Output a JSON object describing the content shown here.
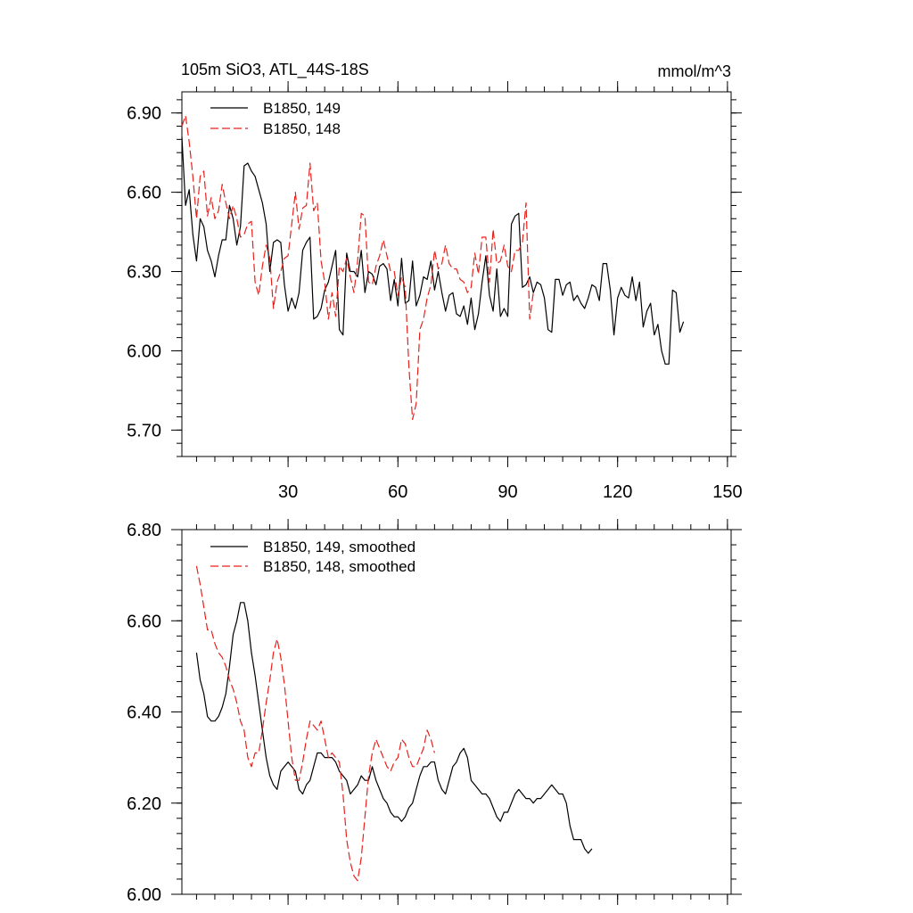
{
  "figure": {
    "title_left": "105m SiO3, ATL_44S-18S",
    "title_right": "mmol/m^3"
  },
  "colors": {
    "series_149": "#000000",
    "series_148": "#e8201b",
    "axis": "#000000"
  },
  "chart_data": [
    {
      "type": "line",
      "title": "105m SiO3, ATL_44S-18S",
      "units": "mmol/m^3",
      "xlim": [
        1,
        151
      ],
      "ylim": [
        5.6,
        6.98
      ],
      "xticks": [
        30,
        60,
        90,
        120,
        150
      ],
      "xtick_labels": [
        "30",
        "60",
        "90",
        "120",
        "150"
      ],
      "yticks": [
        5.7,
        6.0,
        6.3,
        6.6,
        6.9
      ],
      "ytick_labels": [
        "5.70",
        "6.00",
        "6.30",
        "6.60",
        "6.90"
      ],
      "legend_position": "top-left",
      "series": [
        {
          "name": "B1850, 149",
          "style": "solid",
          "x_start": 1,
          "values": [
            6.81,
            6.55,
            6.61,
            6.44,
            6.34,
            6.5,
            6.47,
            6.38,
            6.34,
            6.28,
            6.36,
            6.42,
            6.42,
            6.55,
            6.5,
            6.4,
            6.47,
            6.7,
            6.71,
            6.68,
            6.66,
            6.61,
            6.56,
            6.48,
            6.3,
            6.41,
            6.42,
            6.41,
            6.25,
            6.15,
            6.2,
            6.16,
            6.22,
            6.38,
            6.41,
            6.43,
            6.12,
            6.13,
            6.16,
            6.23,
            6.26,
            6.32,
            6.38,
            6.08,
            6.06,
            6.37,
            6.3,
            6.3,
            6.28,
            6.38,
            6.22,
            6.3,
            6.29,
            6.25,
            6.32,
            6.33,
            6.31,
            6.19,
            6.27,
            6.17,
            6.35,
            6.18,
            6.19,
            6.34,
            6.17,
            6.21,
            6.28,
            6.27,
            6.34,
            6.23,
            6.3,
            6.22,
            6.15,
            6.21,
            6.22,
            6.14,
            6.13,
            6.17,
            6.1,
            6.2,
            6.08,
            6.14,
            6.26,
            6.36,
            6.21,
            6.15,
            6.31,
            6.13,
            6.16,
            6.13,
            6.48,
            6.51,
            6.52,
            6.24,
            6.25,
            6.28,
            6.22,
            6.26,
            6.25,
            6.2,
            6.08,
            6.07,
            6.27,
            6.27,
            6.21,
            6.25,
            6.26,
            6.19,
            6.21,
            6.18,
            6.16,
            6.2,
            6.25,
            6.24,
            6.19,
            6.33,
            6.33,
            6.23,
            6.06,
            6.2,
            6.24,
            6.21,
            6.2,
            6.28,
            6.19,
            6.26,
            6.09,
            6.15,
            6.18,
            6.06,
            6.1,
            6.0,
            5.95,
            5.95,
            6.23,
            6.22,
            6.07,
            6.11
          ]
        },
        {
          "name": "B1850, 148",
          "style": "dashed",
          "x_start": 1,
          "values": [
            6.85,
            6.89,
            6.79,
            6.66,
            6.5,
            6.66,
            6.68,
            6.51,
            6.58,
            6.5,
            6.53,
            6.63,
            6.56,
            6.5,
            6.55,
            6.5,
            6.43,
            6.44,
            6.48,
            6.49,
            6.26,
            6.21,
            6.32,
            6.4,
            6.35,
            6.16,
            6.26,
            6.3,
            6.35,
            6.36,
            6.48,
            6.6,
            6.46,
            6.54,
            6.55,
            6.71,
            6.53,
            6.56,
            6.34,
            6.26,
            6.12,
            6.22,
            6.13,
            6.32,
            6.3,
            6.35,
            6.28,
            6.22,
            6.34,
            6.52,
            6.51,
            6.26,
            6.25,
            6.32,
            6.36,
            6.42,
            6.36,
            6.3,
            6.3,
            6.21,
            6.28,
            6.24,
            5.94,
            5.74,
            5.8,
            6.08,
            6.12,
            6.2,
            6.25,
            6.38,
            6.31,
            6.33,
            6.4,
            6.33,
            6.31,
            6.31,
            6.27,
            6.26,
            6.22,
            6.24,
            6.37,
            6.29,
            6.43,
            6.43,
            6.26,
            6.46,
            6.33,
            6.34,
            6.4,
            6.32,
            6.3,
            6.38,
            6.38,
            6.41,
            6.56,
            6.12,
            6.22
          ]
        }
      ]
    },
    {
      "type": "line",
      "title": "",
      "xlim": [
        1,
        151
      ],
      "ylim": [
        6.0,
        6.8
      ],
      "xticks": [
        30,
        60,
        90,
        120,
        150
      ],
      "yticks": [
        6.0,
        6.2,
        6.4,
        6.6,
        6.8
      ],
      "ytick_labels": [
        "6.00",
        "6.20",
        "6.40",
        "6.60",
        "6.80"
      ],
      "legend_position": "top-left",
      "series": [
        {
          "name": "B1850, 149, smoothed",
          "style": "solid",
          "x_start": 5,
          "values": [
            6.53,
            6.47,
            6.44,
            6.39,
            6.38,
            6.38,
            6.39,
            6.41,
            6.44,
            6.5,
            6.57,
            6.6,
            6.64,
            6.64,
            6.6,
            6.53,
            6.48,
            6.42,
            6.36,
            6.3,
            6.26,
            6.24,
            6.23,
            6.27,
            6.28,
            6.29,
            6.28,
            6.27,
            6.23,
            6.22,
            6.24,
            6.25,
            6.28,
            6.31,
            6.31,
            6.3,
            6.3,
            6.3,
            6.29,
            6.27,
            6.26,
            6.25,
            6.22,
            6.23,
            6.24,
            6.26,
            6.25,
            6.25,
            6.28,
            6.25,
            6.23,
            6.21,
            6.2,
            6.18,
            6.17,
            6.17,
            6.16,
            6.17,
            6.19,
            6.2,
            6.23,
            6.26,
            6.28,
            6.28,
            6.29,
            6.29,
            6.25,
            6.23,
            6.22,
            6.25,
            6.28,
            6.29,
            6.31,
            6.32,
            6.3,
            6.25,
            6.24,
            6.23,
            6.22,
            6.22,
            6.21,
            6.19,
            6.17,
            6.16,
            6.18,
            6.18,
            6.2,
            6.22,
            6.23,
            6.22,
            6.21,
            6.21,
            6.2,
            6.21,
            6.21,
            6.22,
            6.23,
            6.24,
            6.23,
            6.22,
            6.22,
            6.2,
            6.15,
            6.12,
            6.12,
            6.12,
            6.1,
            6.09,
            6.1
          ]
        },
        {
          "name": "B1850, 148, smoothed",
          "style": "dashed",
          "x_start": 5,
          "values": [
            6.72,
            6.68,
            6.63,
            6.58,
            6.58,
            6.55,
            6.53,
            6.52,
            6.5,
            6.47,
            6.45,
            6.42,
            6.38,
            6.36,
            6.3,
            6.28,
            6.31,
            6.31,
            6.36,
            6.42,
            6.47,
            6.53,
            6.56,
            6.52,
            6.46,
            6.38,
            6.3,
            6.25,
            6.25,
            6.29,
            6.34,
            6.38,
            6.37,
            6.36,
            6.38,
            6.34,
            6.3,
            6.31,
            6.3,
            6.29,
            6.22,
            6.12,
            6.07,
            6.04,
            6.03,
            6.08,
            6.17,
            6.26,
            6.31,
            6.34,
            6.32,
            6.3,
            6.28,
            6.27,
            6.29,
            6.3,
            6.34,
            6.33,
            6.3,
            6.28,
            6.28,
            6.3,
            6.32,
            6.36,
            6.34,
            6.31
          ]
        }
      ]
    }
  ]
}
